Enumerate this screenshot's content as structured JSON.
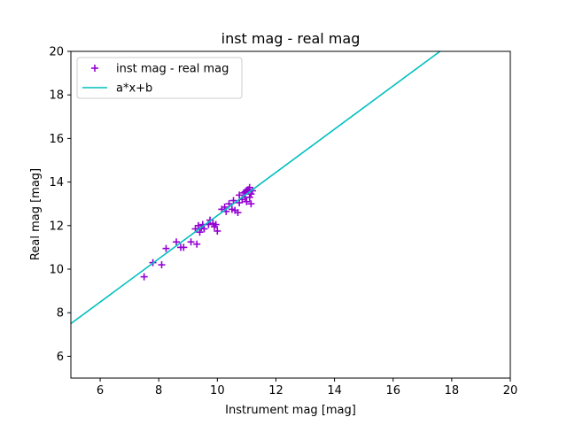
{
  "chart_data": {
    "type": "scatter",
    "title": "inst mag - real mag",
    "xlabel": "Instrument mag [mag]",
    "ylabel": "Real mag [mag]",
    "xlim": [
      5,
      20
    ],
    "ylim": [
      5,
      20
    ],
    "xticks": [
      "6",
      "8",
      "10",
      "12",
      "14",
      "16",
      "18",
      "20"
    ],
    "yticks": [
      "6",
      "8",
      "10",
      "12",
      "14",
      "16",
      "18",
      "20"
    ],
    "grid": false,
    "legend_position": "top-left",
    "series": [
      {
        "name": "inst mag - real mag",
        "kind": "scatter",
        "marker": "plus",
        "color": "#9400d3",
        "points": [
          [
            7.5,
            9.65
          ],
          [
            7.8,
            10.3
          ],
          [
            8.1,
            10.2
          ],
          [
            8.25,
            10.95
          ],
          [
            8.6,
            11.25
          ],
          [
            8.75,
            11.0
          ],
          [
            8.85,
            11.0
          ],
          [
            9.1,
            11.25
          ],
          [
            9.25,
            11.85
          ],
          [
            9.3,
            11.15
          ],
          [
            9.35,
            12.0
          ],
          [
            9.4,
            11.7
          ],
          [
            9.45,
            11.9
          ],
          [
            9.5,
            12.05
          ],
          [
            9.55,
            11.85
          ],
          [
            9.7,
            12.05
          ],
          [
            9.75,
            12.25
          ],
          [
            9.85,
            12.1
          ],
          [
            9.9,
            11.95
          ],
          [
            9.95,
            12.05
          ],
          [
            10.0,
            11.75
          ],
          [
            10.15,
            12.75
          ],
          [
            10.25,
            12.85
          ],
          [
            10.3,
            12.65
          ],
          [
            10.4,
            13.0
          ],
          [
            10.5,
            12.75
          ],
          [
            10.55,
            13.15
          ],
          [
            10.6,
            12.7
          ],
          [
            10.7,
            12.6
          ],
          [
            10.75,
            13.05
          ],
          [
            10.75,
            13.4
          ],
          [
            10.85,
            13.2
          ],
          [
            10.9,
            13.5
          ],
          [
            10.95,
            13.3
          ],
          [
            10.95,
            13.55
          ],
          [
            11.0,
            13.6
          ],
          [
            11.0,
            13.1
          ],
          [
            11.05,
            13.65
          ],
          [
            11.1,
            13.75
          ],
          [
            11.1,
            13.3
          ],
          [
            11.15,
            13.0
          ],
          [
            11.15,
            13.45
          ],
          [
            11.2,
            13.6
          ]
        ]
      },
      {
        "name": "a*x+b",
        "kind": "line",
        "color": "#00bfbf",
        "points": [
          [
            5,
            7.5
          ],
          [
            17.6,
            20
          ]
        ]
      }
    ]
  }
}
